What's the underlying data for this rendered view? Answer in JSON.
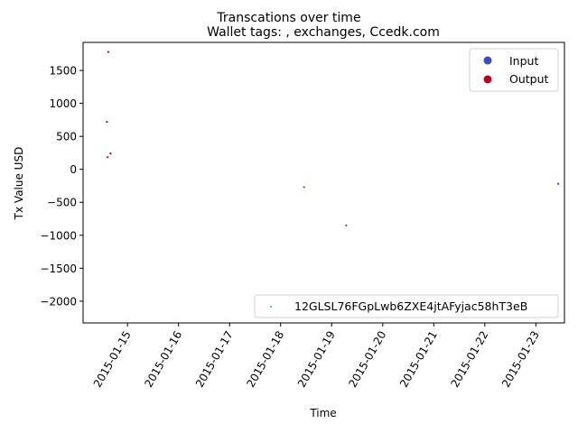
{
  "chart_data": {
    "type": "scatter",
    "suptitle": "Transcations over time",
    "title": "Wallet tags: , exchanges, Ccedk.com",
    "xlabel": "Time",
    "ylabel": "Tx Value USD",
    "x_ticks": [
      "2015-01-15",
      "2015-01-16",
      "2015-01-17",
      "2015-01-18",
      "2015-01-19",
      "2015-01-20",
      "2015-01-21",
      "2015-01-22",
      "2015-01-23"
    ],
    "y_ticks": [
      1500,
      1000,
      500,
      0,
      -500,
      -1000,
      -1500,
      -2000
    ],
    "y_tick_labels": [
      "1500",
      "1000",
      "500",
      "0",
      "−500",
      "−1000",
      "−1500",
      "−2000"
    ],
    "xlim": [
      "2015-01-14 03:07",
      "2015-01-23 13:26"
    ],
    "ylim": [
      -2330,
      1925
    ],
    "grid": false,
    "series": [
      {
        "name": "Output",
        "color": "#b40426",
        "points": [
          {
            "x": "2015-01-14 15:00",
            "y": 1780
          },
          {
            "x": "2015-01-14 14:20",
            "y": 720
          },
          {
            "x": "2015-01-14 16:00",
            "y": 240
          },
          {
            "x": "2015-01-14 14:40",
            "y": 185
          }
        ]
      },
      {
        "name": "Input",
        "color": "#3b4cc0",
        "points": [
          {
            "x": "2015-01-18 11:00",
            "y": -270
          },
          {
            "x": "2015-01-19 06:50",
            "y": -850
          },
          {
            "x": "2015-01-23 10:30",
            "y": -220
          }
        ]
      }
    ],
    "legends": [
      {
        "placement": "upper right",
        "entries": [
          {
            "label": "Input",
            "color": "#3b4cc0"
          },
          {
            "label": "Output",
            "color": "#b40426"
          }
        ]
      },
      {
        "placement": "lower right",
        "entries": [
          {
            "label": "12GLSL76FGpLwb6ZXE4jtAFyjac58hT3eB",
            "color": "#2a7fa8"
          }
        ]
      }
    ]
  }
}
